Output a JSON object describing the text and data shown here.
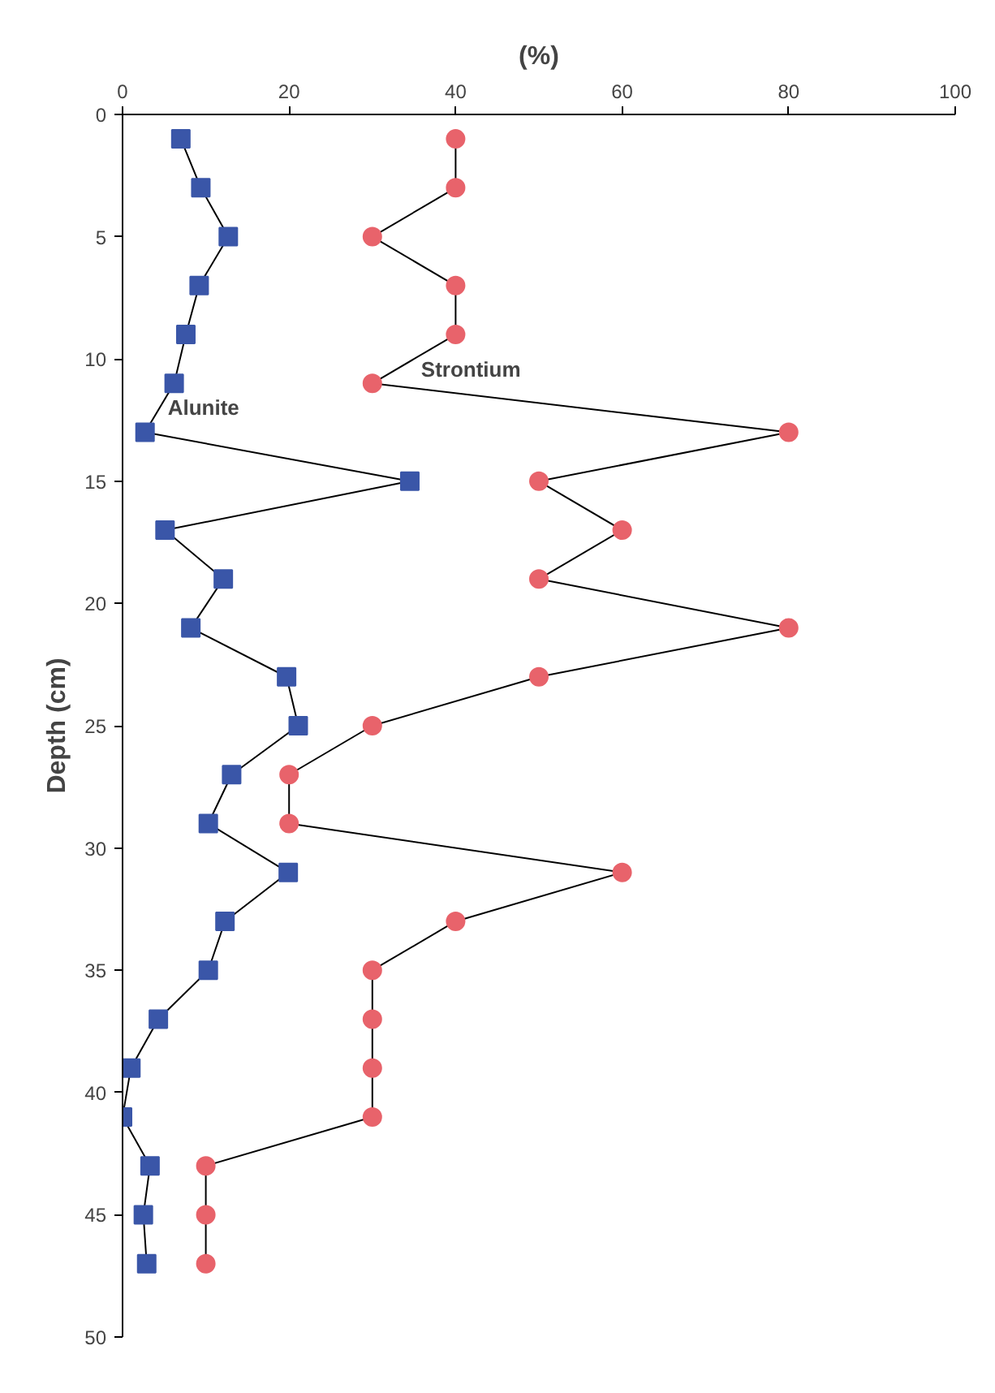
{
  "chart_data": {
    "type": "line",
    "xlabel": "(%)",
    "ylabel": "Depth (cm)",
    "x": [
      1,
      3,
      5,
      7,
      9,
      11,
      13,
      15,
      17,
      19,
      21,
      23,
      25,
      27,
      29,
      31,
      33,
      35,
      37,
      39,
      41,
      43,
      45,
      47
    ],
    "series": [
      {
        "name": "Alunite",
        "color": "#3a56a8",
        "marker": "square",
        "values": [
          7.0,
          9.4,
          12.7,
          9.2,
          7.6,
          6.2,
          2.7,
          34.5,
          5.1,
          12.1,
          8.2,
          19.7,
          21.1,
          13.1,
          10.3,
          19.9,
          12.3,
          10.3,
          4.3,
          1.0,
          0,
          3.3,
          2.5,
          2.9
        ]
      },
      {
        "name": "Strontium",
        "color": "#e8636b",
        "marker": "circle",
        "values": [
          40,
          40,
          30,
          40,
          40,
          30,
          80,
          50,
          60,
          50,
          80,
          50,
          30,
          20,
          20,
          60,
          40,
          30,
          30,
          30,
          30,
          10,
          10,
          10
        ]
      }
    ],
    "orientation": "horizontal",
    "xlim": [
      0,
      100
    ],
    "xticks": [
      0,
      20,
      40,
      60,
      80,
      100
    ],
    "ylim": [
      50,
      0
    ],
    "yticks": [
      0,
      5,
      10,
      15,
      20,
      25,
      30,
      35,
      40,
      45,
      50
    ]
  }
}
